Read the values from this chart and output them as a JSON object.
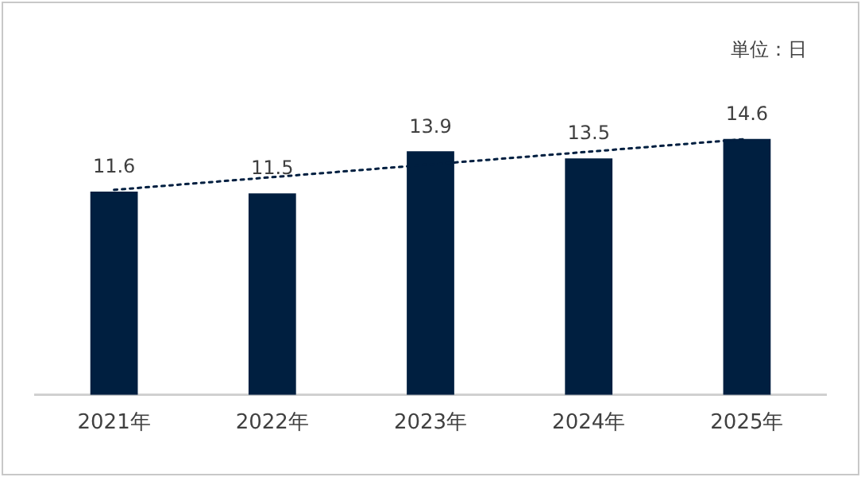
{
  "chart_data": {
    "type": "bar",
    "categories": [
      "2021年",
      "2022年",
      "2023年",
      "2024年",
      "2025年"
    ],
    "series": [
      {
        "color": "#001f40",
        "values": [
          11.6,
          11.5,
          13.9,
          13.5,
          14.6
        ],
        "value_labels": [
          "11.6",
          "11.5",
          "13.9",
          "13.5",
          "14.6"
        ]
      },
      {
        "type": "line",
        "color": "#001f40",
        "x": [
          "2021年",
          "2025年"
        ],
        "values": [
          11.7,
          14.6
        ],
        "line_style": "dotted",
        "marker": "none"
      }
    ],
    "grid": false,
    "legend": false,
    "annotations": [
      "単位：日"
    ]
  }
}
